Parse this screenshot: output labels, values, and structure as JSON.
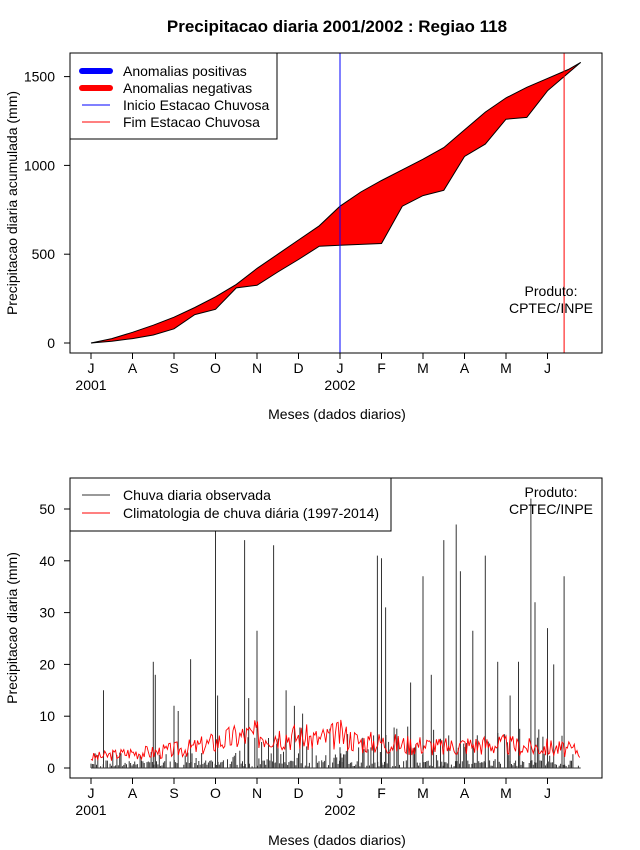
{
  "chart_data": [
    {
      "type": "area",
      "title": "Precipitacao diaria 2001/2002 : Regiao 118",
      "xlabel": "Meses (dados diarios)",
      "ylabel": "Precipitacao diaria acumulada (mm)",
      "ylim": [
        0,
        1600
      ],
      "yticks": [
        0,
        500,
        1000,
        1500
      ],
      "x_month_labels": [
        "J",
        "A",
        "S",
        "O",
        "N",
        "D",
        "J",
        "F",
        "M",
        "A",
        "M",
        "J"
      ],
      "x_year_labels": [
        {
          "month_index": 0,
          "label": "2001"
        },
        {
          "month_index": 6,
          "label": "2002"
        }
      ],
      "legend": {
        "position": "top-left",
        "entries": [
          {
            "label": "Anomalias positivas",
            "color": "#0000ff",
            "style": "thick"
          },
          {
            "label": "Anomalias negativas",
            "color": "#ff0000",
            "style": "thick"
          },
          {
            "label": "Inicio Estacao Chuvosa",
            "color": "#0000ff",
            "style": "thin"
          },
          {
            "label": "Fim Estacao Chuvosa",
            "color": "#ff0000",
            "style": "thin"
          }
        ]
      },
      "annotation": [
        "Produto:",
        "CPTEC/INPE"
      ],
      "start_rainy_season_month": 6.0,
      "end_rainy_season_month": 11.4,
      "series": [
        {
          "name": "Climatologia acumulada",
          "month": [
            0,
            0.5,
            1,
            1.5,
            2,
            2.5,
            3,
            3.5,
            4,
            4.5,
            5,
            5.5,
            6,
            6.5,
            7,
            7.5,
            8,
            8.5,
            9,
            9.5,
            10,
            10.5,
            11,
            11.5,
            11.8
          ],
          "values": [
            0,
            25,
            60,
            100,
            145,
            200,
            260,
            330,
            420,
            500,
            580,
            660,
            770,
            850,
            915,
            975,
            1035,
            1100,
            1200,
            1300,
            1380,
            1440,
            1490,
            1540,
            1580
          ]
        },
        {
          "name": "Chuva observada acumulada",
          "month": [
            0,
            0.5,
            1,
            1.5,
            2,
            2.5,
            3,
            3.5,
            4,
            4.5,
            5,
            5.5,
            6,
            6.5,
            7,
            7.5,
            8,
            8.5,
            9,
            9.5,
            10,
            10.5,
            11,
            11.5,
            11.8
          ],
          "values": [
            0,
            10,
            25,
            45,
            80,
            160,
            190,
            310,
            325,
            400,
            470,
            545,
            550,
            555,
            560,
            770,
            830,
            860,
            1050,
            1120,
            1260,
            1270,
            1420,
            1520,
            1580
          ]
        }
      ]
    },
    {
      "type": "line",
      "title": "",
      "xlabel": "Meses (dados diarios)",
      "ylabel": "Precipitacao diaria (mm)",
      "ylim": [
        0,
        55
      ],
      "yticks": [
        0,
        10,
        20,
        30,
        40,
        50
      ],
      "x_month_labels": [
        "J",
        "A",
        "S",
        "O",
        "N",
        "D",
        "J",
        "F",
        "M",
        "A",
        "M",
        "J"
      ],
      "x_year_labels": [
        {
          "month_index": 0,
          "label": "2001"
        },
        {
          "month_index": 6,
          "label": "2002"
        }
      ],
      "legend": {
        "position": "top-left",
        "entries": [
          {
            "label": "Chuva diaria observada",
            "color": "#333333"
          },
          {
            "label": "Climatologia de chuva diária (1997-2014)",
            "color": "#ff0000"
          }
        ]
      },
      "annotation": [
        "Produto:",
        "CPTEC/INPE"
      ],
      "series": [
        {
          "name": "Chuva diaria observada (picos)",
          "month": [
            0.3,
            1.5,
            1.55,
            2.0,
            2.1,
            2.4,
            3.0,
            3.05,
            3.7,
            3.8,
            4.0,
            4.4,
            4.7,
            4.9,
            5.1,
            6.0,
            6.05,
            6.9,
            7.0,
            7.1,
            7.7,
            8.0,
            8.2,
            8.5,
            8.8,
            8.9,
            9.2,
            9.5,
            9.8,
            10.1,
            10.3,
            10.6,
            10.7,
            11.0,
            11.15,
            11.4
          ],
          "values": [
            15,
            20.5,
            18,
            12,
            11,
            21,
            46,
            14,
            44,
            13.5,
            26.5,
            43,
            15,
            12,
            10.5,
            4,
            2,
            41,
            40.5,
            31,
            16.5,
            37,
            18,
            44,
            47,
            38,
            26.5,
            41,
            20.5,
            14,
            20.5,
            52,
            32,
            27,
            20,
            37
          ]
        },
        {
          "name": "Climatologia de chuva diária (1997-2014)",
          "month": [
            0,
            0.5,
            1,
            1.5,
            2,
            2.5,
            3,
            3.5,
            4,
            4.5,
            5,
            5.5,
            6,
            6.5,
            7,
            7.5,
            8,
            8.5,
            9,
            9.5,
            10,
            10.5,
            11,
            11.5,
            11.8
          ],
          "values": [
            2,
            2.5,
            3,
            3,
            3.5,
            4,
            5,
            6,
            6.5,
            6.5,
            6,
            5.5,
            6.5,
            5,
            5,
            4.5,
            4.5,
            4,
            4.5,
            4.5,
            4.5,
            4,
            4,
            3.5,
            3.5
          ]
        }
      ]
    }
  ]
}
